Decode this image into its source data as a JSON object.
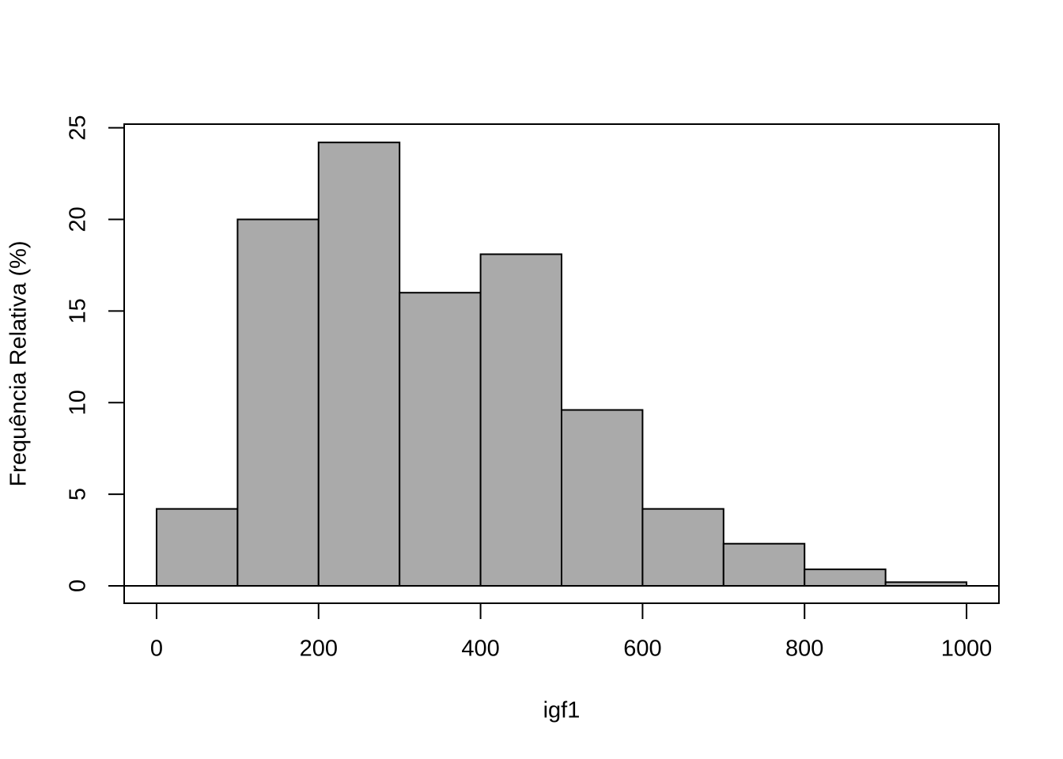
{
  "chart_data": {
    "type": "histogram",
    "x_label": "igf1",
    "y_label": "Frequência Relativa (%)",
    "bins": [
      0,
      100,
      200,
      300,
      400,
      500,
      600,
      700,
      800,
      900,
      1000
    ],
    "values": [
      4.2,
      20.0,
      24.2,
      16.0,
      18.1,
      9.6,
      4.2,
      2.3,
      0.9,
      0.2
    ],
    "color": "#aaaaaa",
    "xlim": [
      -40,
      1040
    ],
    "ylim": [
      -0.95,
      25.2
    ],
    "xticks": [
      0,
      200,
      400,
      600,
      800,
      1000
    ],
    "yticks": [
      0,
      5,
      10,
      15,
      20,
      25
    ]
  }
}
